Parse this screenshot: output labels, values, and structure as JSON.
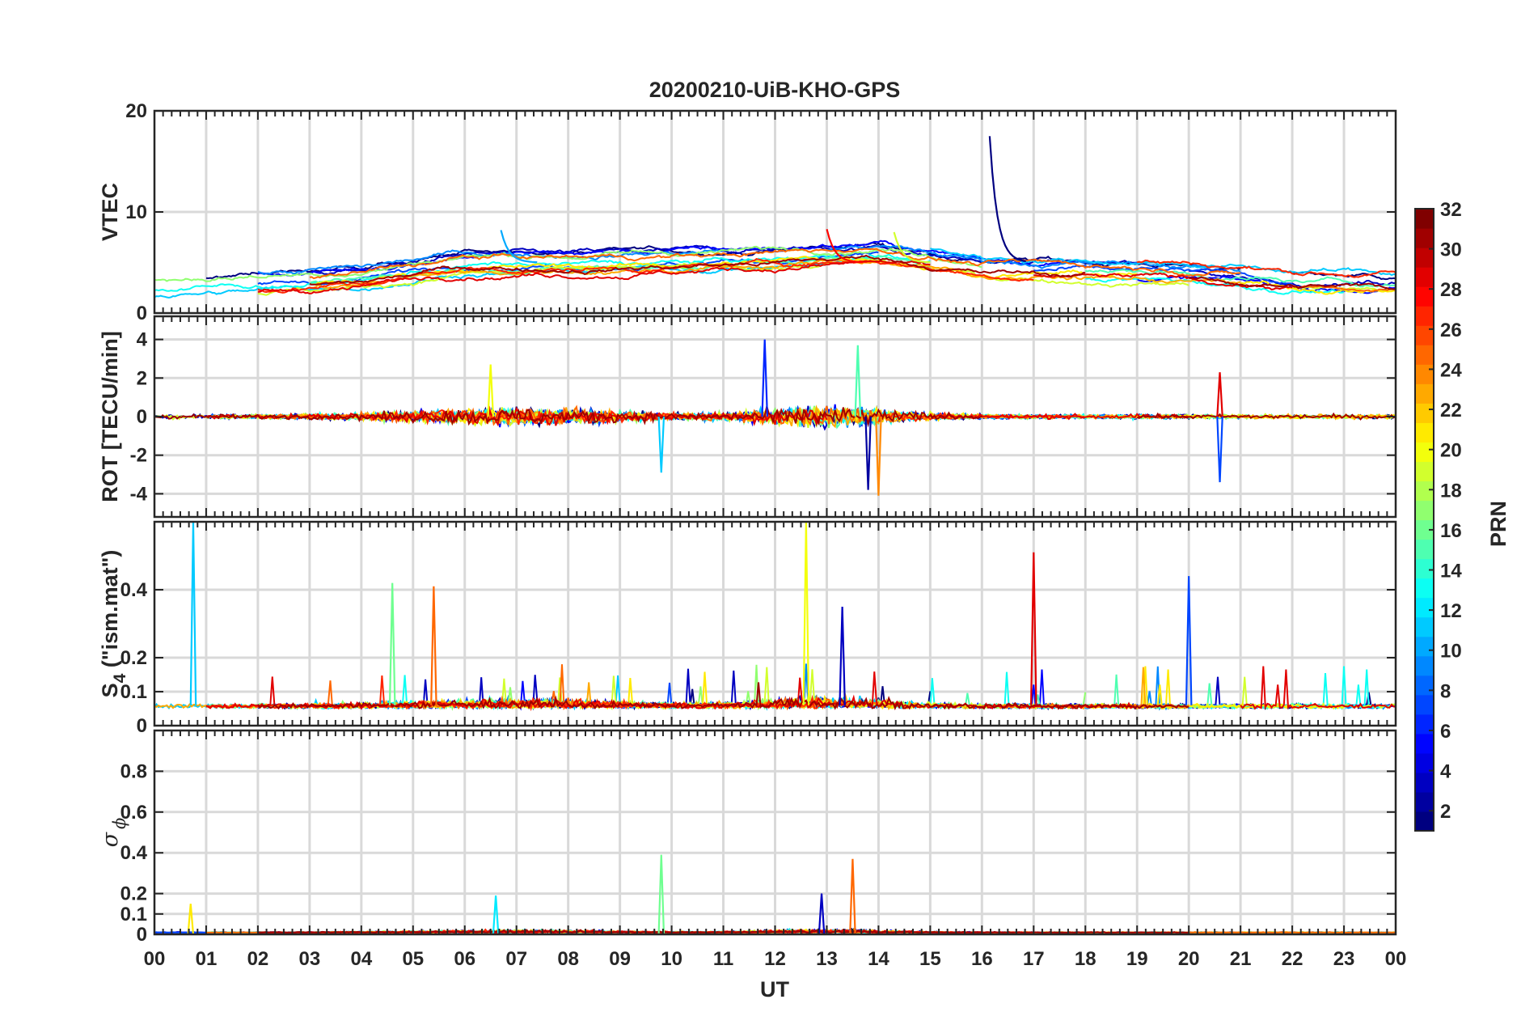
{
  "chart_data": {
    "type": "line",
    "title": "20200210-UiB-KHO-GPS",
    "x": {
      "label": "UT",
      "range_hours": [
        0,
        24
      ],
      "tick_labels": [
        "00",
        "01",
        "02",
        "03",
        "04",
        "05",
        "06",
        "07",
        "08",
        "09",
        "10",
        "11",
        "12",
        "13",
        "14",
        "15",
        "16",
        "17",
        "18",
        "19",
        "20",
        "21",
        "22",
        "23",
        "00"
      ]
    },
    "grid": true,
    "panels": [
      {
        "ylabel": "VTEC",
        "ylim": [
          0,
          20
        ],
        "yticks": [
          0,
          10,
          20
        ],
        "notable_features": [
          {
            "hour": 16.15,
            "value": 17.5
          },
          {
            "hour": 6.7,
            "value": 8.2
          },
          {
            "hour": 14.3,
            "value": 8.0
          },
          {
            "hour": 13.0,
            "value": 8.3
          }
        ],
        "baseline_profile": {
          "hours": [
            0,
            2,
            4,
            6,
            8,
            10,
            12,
            14,
            16,
            18,
            20,
            22,
            24
          ],
          "values": [
            2.5,
            3.0,
            3.5,
            5.0,
            5.0,
            5.2,
            5.5,
            6.0,
            4.5,
            4.3,
            4.0,
            3.2,
            3.0
          ]
        }
      },
      {
        "ylabel": "ROT [TECU/min]",
        "ylim": [
          -5.2,
          5.2
        ],
        "yticks": [
          -4,
          -2,
          0,
          2,
          4
        ],
        "notable_features": [
          {
            "hour": 11.8,
            "value": 4.0
          },
          {
            "hour": 13.6,
            "value": 3.7
          },
          {
            "hour": 14.0,
            "value": -4.1
          },
          {
            "hour": 13.8,
            "value": -3.8
          },
          {
            "hour": 9.8,
            "value": -2.9
          },
          {
            "hour": 6.5,
            "value": 2.7
          },
          {
            "hour": 20.6,
            "value": 2.3
          },
          {
            "hour": 20.6,
            "value": -3.4
          }
        ]
      },
      {
        "ylabel": "S",
        "ylabel_subscript": "4",
        "ylabel_suffix": " (\"ism.mat\")",
        "ylim": [
          0,
          0.6
        ],
        "yticks": [
          0,
          0.1,
          0.2,
          0.4
        ],
        "notable_features": [
          {
            "hour": 0.75,
            "value": 0.6
          },
          {
            "hour": 12.6,
            "value": 0.6
          },
          {
            "hour": 17.0,
            "value": 0.51
          },
          {
            "hour": 20.0,
            "value": 0.44
          },
          {
            "hour": 4.6,
            "value": 0.42
          },
          {
            "hour": 5.4,
            "value": 0.41
          },
          {
            "hour": 13.3,
            "value": 0.35
          }
        ]
      },
      {
        "ylabel": "σ",
        "ylabel_subscript": "ϕ",
        "ylim": [
          0,
          1
        ],
        "yticks": [
          0,
          0.1,
          0.2,
          0.4,
          0.6,
          0.8
        ],
        "notable_features": [
          {
            "hour": 9.8,
            "value": 0.39
          },
          {
            "hour": 13.5,
            "value": 0.37
          },
          {
            "hour": 12.9,
            "value": 0.2
          },
          {
            "hour": 6.6,
            "value": 0.19
          },
          {
            "hour": 0.7,
            "value": 0.15
          }
        ]
      }
    ],
    "colorbar": {
      "label": "PRN",
      "range": [
        1,
        32
      ],
      "ticks": [
        2,
        4,
        6,
        8,
        10,
        12,
        14,
        16,
        18,
        20,
        22,
        24,
        26,
        28,
        30,
        32
      ],
      "colormap": "jet",
      "levels": 32
    }
  },
  "colors": {
    "axis": "#262626",
    "grid": "#d9d9d9",
    "background": "#ffffff"
  }
}
